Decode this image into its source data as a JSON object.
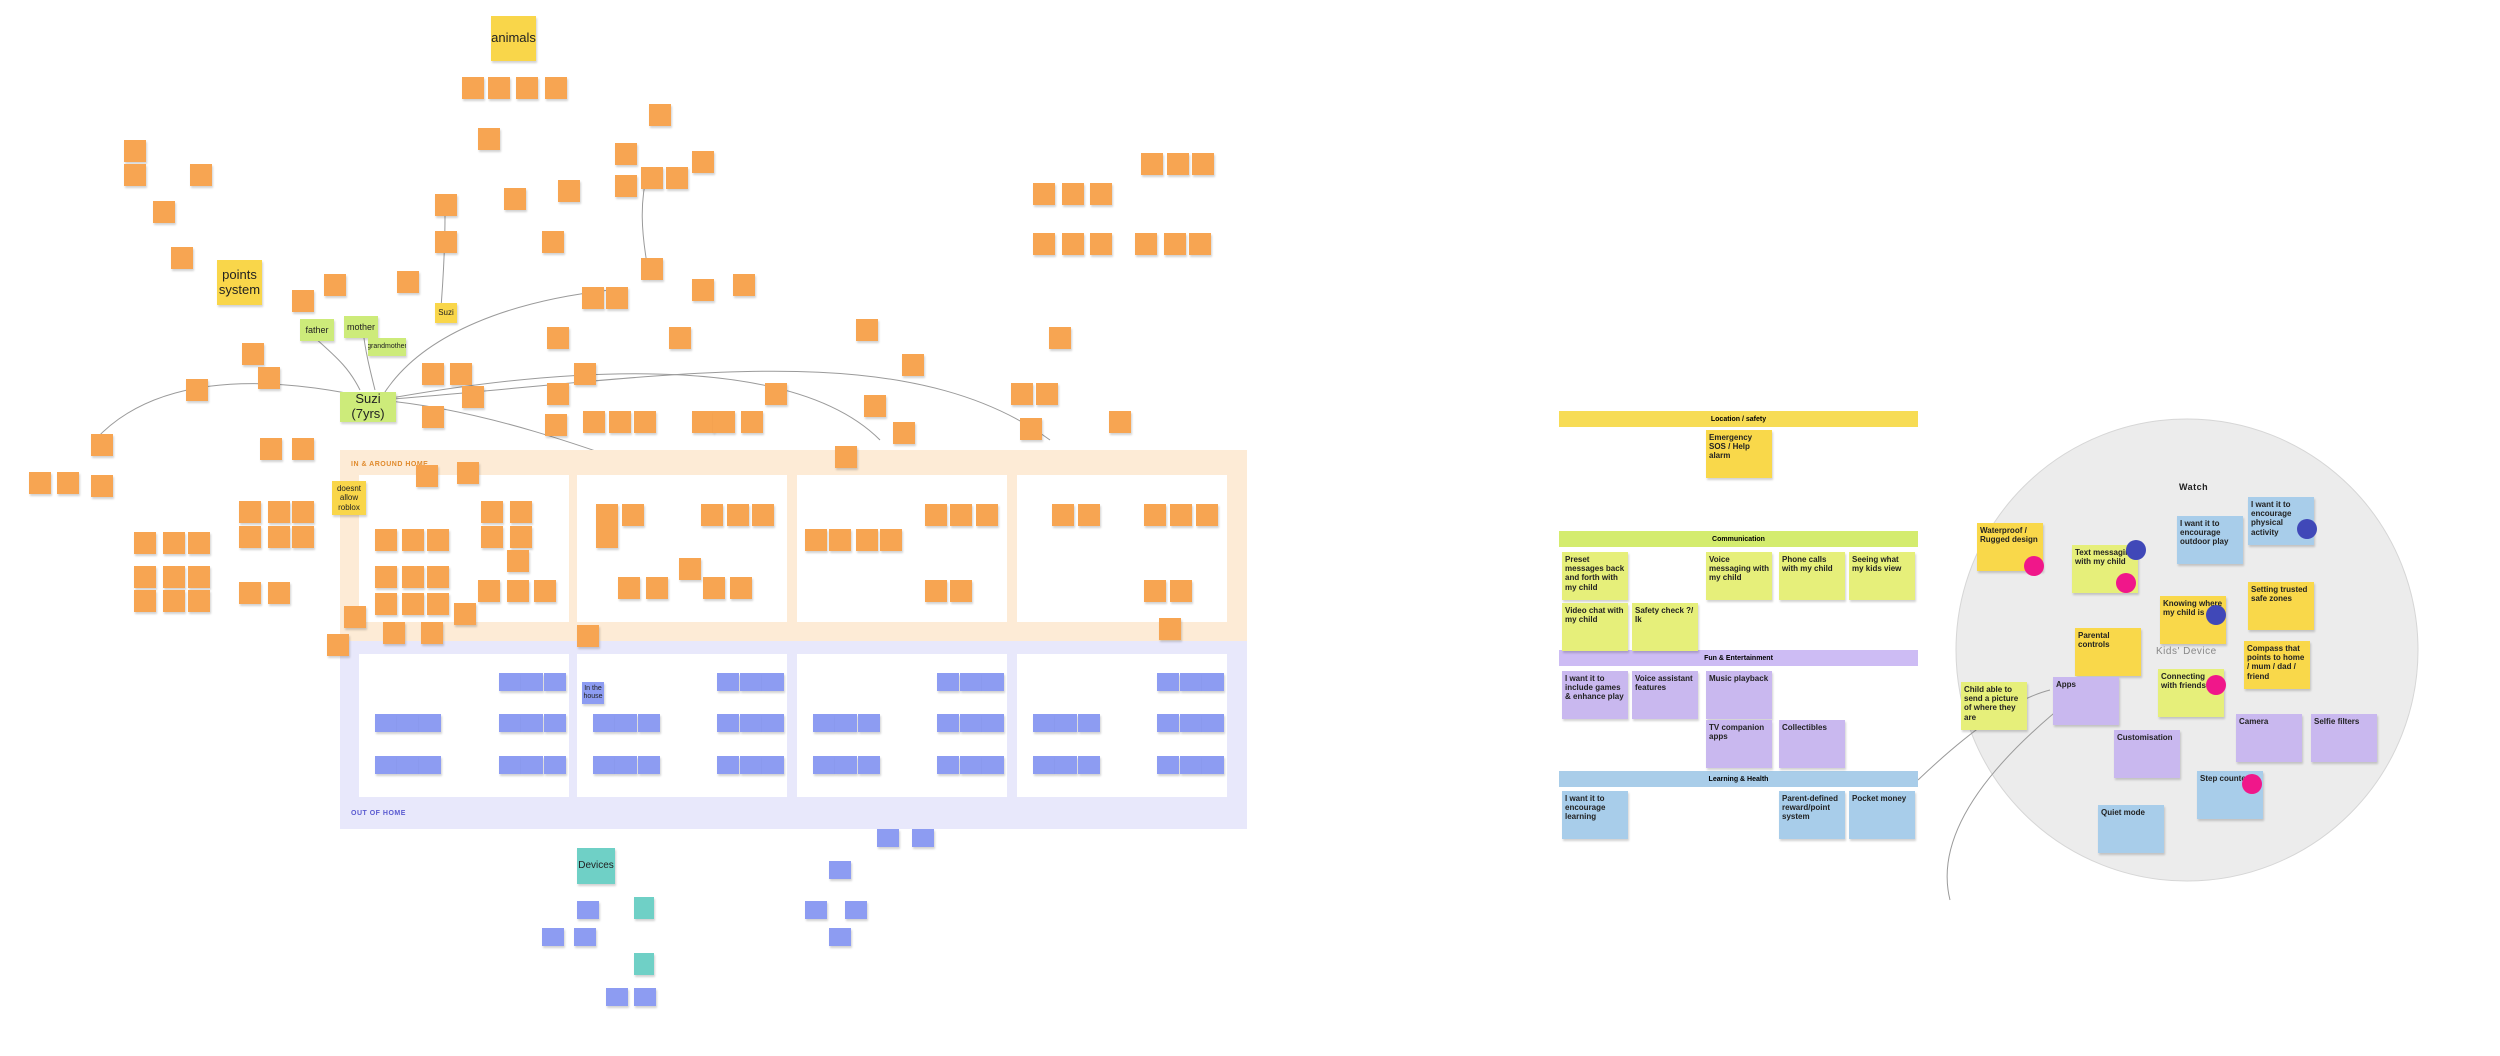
{
  "board": {
    "clusters": [
      "animals",
      "points system",
      "Suzi",
      "father",
      "mother",
      "grandmother",
      "Suzi (7yrs)",
      "doesnt allow roblox",
      "Devices",
      "In the house"
    ],
    "zones": [
      "IN & AROUND HOME",
      "OUT OF HOME"
    ]
  },
  "watch_map": {
    "categories": [
      "Location / safety",
      "Communication",
      "Fun & Entertainment",
      "Learning & Health"
    ],
    "notes": [
      "Emergency SOS / Help alarm",
      "Preset messages back and forth with my child",
      "Voice messaging with my child",
      "Phone calls with my child",
      "Seeing what my kids view",
      "Video chat with my child",
      "Safety check ?/ Ik",
      "I want it to include games & enhance play",
      "Voice assistant features",
      "Music playback",
      "TV companion apps",
      "Collectibles",
      "I want it to encourage learning",
      "Parent-defined reward/point system",
      "Pocket money"
    ]
  },
  "watch": {
    "title": "Watch",
    "center": "Kids' Device",
    "notes": [
      "Waterproof / Rugged design",
      "Text messaging with my child",
      "I want it to encourage outdoor play",
      "I want it to encourage physical activity",
      "Knowing where my child is",
      "Setting trusted safe zones",
      "Parental controls",
      "Compass that points to home / mum / dad / friend",
      "Child able to send a picture of where they are",
      "Apps",
      "Customisation",
      "Connecting with friends",
      "Camera",
      "Selfie filters",
      "Step counter",
      "Quiet mode"
    ]
  }
}
